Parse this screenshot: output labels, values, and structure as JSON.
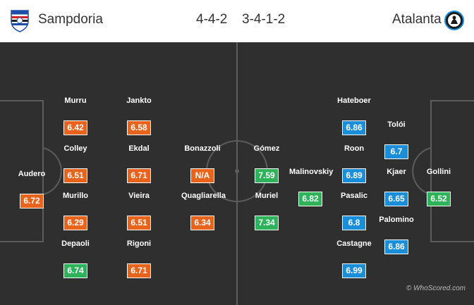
{
  "home": {
    "name": "Sampdoria",
    "formation": "4-4-2",
    "crest_icon": "sampdoria-crest-icon",
    "rating_color": "#e8631b",
    "players": [
      {
        "name": "Audero",
        "rating": "6.72",
        "color": "orange"
      },
      {
        "name": "Murru",
        "rating": "6.42",
        "color": "orange"
      },
      {
        "name": "Colley",
        "rating": "6.51",
        "color": "orange"
      },
      {
        "name": "Murillo",
        "rating": "6.29",
        "color": "orange"
      },
      {
        "name": "Depaoli",
        "rating": "6.74",
        "color": "green"
      },
      {
        "name": "Jankto",
        "rating": "6.58",
        "color": "orange"
      },
      {
        "name": "Ekdal",
        "rating": "6.71",
        "color": "orange"
      },
      {
        "name": "Vieira",
        "rating": "6.51",
        "color": "orange"
      },
      {
        "name": "Rigoni",
        "rating": "6.71",
        "color": "orange"
      },
      {
        "name": "Bonazzoli",
        "rating": "N/A",
        "color": "orange"
      },
      {
        "name": "Quagliarella",
        "rating": "6.34",
        "color": "orange"
      }
    ]
  },
  "away": {
    "name": "Atalanta",
    "formation": "3-4-1-2",
    "crest_icon": "atalanta-crest-icon",
    "rating_color": "#1a8ed8",
    "players": [
      {
        "name": "Gómez",
        "rating": "7.59",
        "color": "green"
      },
      {
        "name": "Muriel",
        "rating": "7.34",
        "color": "green"
      },
      {
        "name": "Malinovskiy",
        "rating": "6.82",
        "color": "green"
      },
      {
        "name": "Hateboer",
        "rating": "6.86",
        "color": "blue"
      },
      {
        "name": "Roon",
        "rating": "6.89",
        "color": "blue"
      },
      {
        "name": "Pasalic",
        "rating": "6.8",
        "color": "blue"
      },
      {
        "name": "Castagne",
        "rating": "6.99",
        "color": "blue"
      },
      {
        "name": "Tolói",
        "rating": "6.7",
        "color": "blue"
      },
      {
        "name": "Kjaer",
        "rating": "6.65",
        "color": "blue"
      },
      {
        "name": "Palomino",
        "rating": "6.86",
        "color": "blue"
      },
      {
        "name": "Gollini",
        "rating": "6.52",
        "color": "green"
      }
    ]
  },
  "highlight_color": "#2eb25a",
  "watermark": "© WhoScored.com"
}
